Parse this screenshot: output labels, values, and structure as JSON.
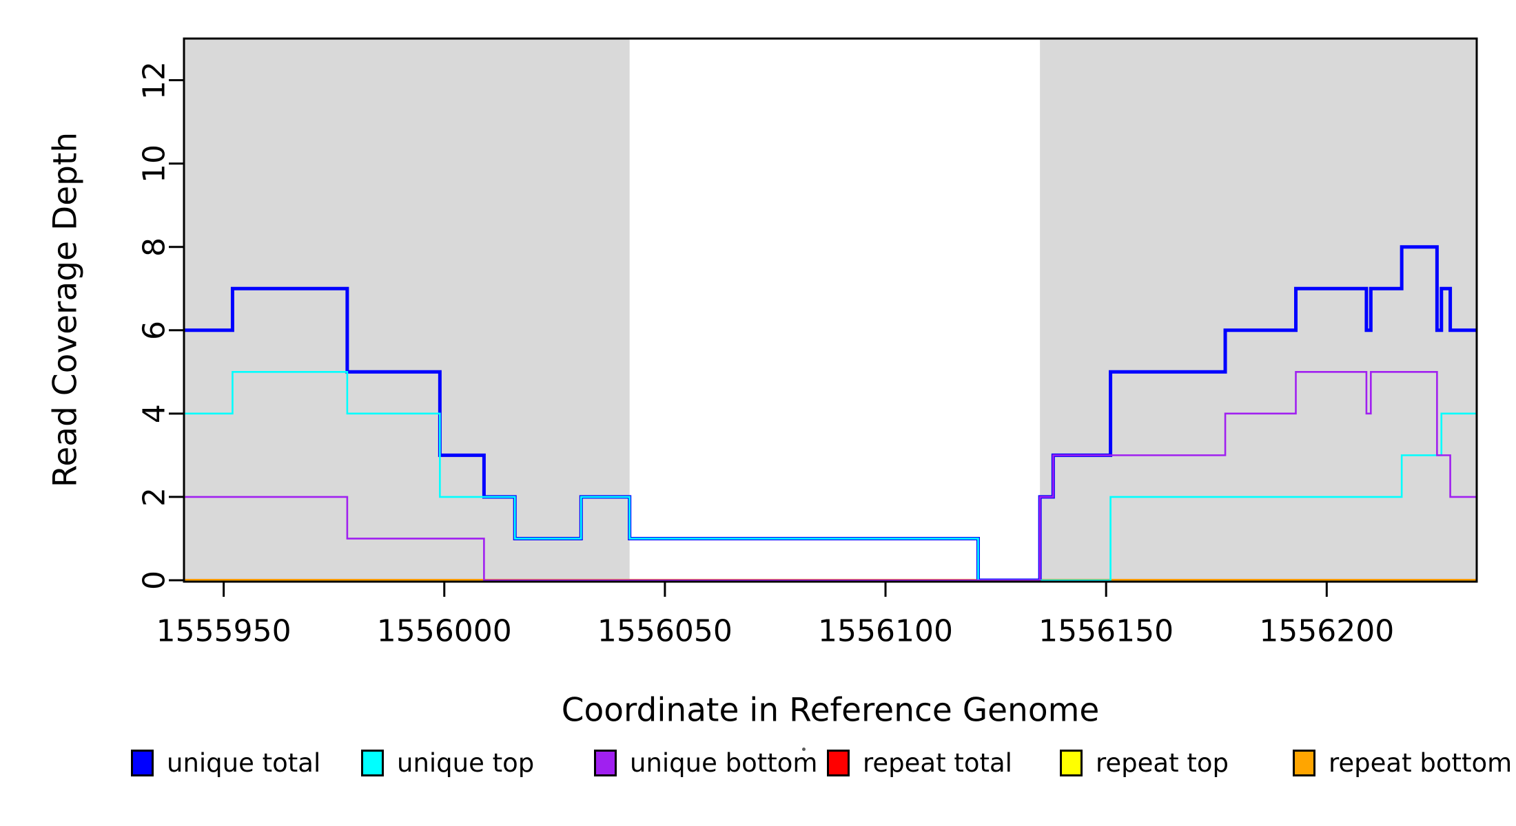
{
  "chart_data": {
    "type": "line",
    "subtype": "step",
    "title": "",
    "xlabel": "Coordinate in Reference Genome",
    "ylabel": "Read Coverage Depth",
    "xlim": [
      1555941,
      1556234
    ],
    "ylim": [
      0,
      13
    ],
    "x_ticks": [
      1555950,
      1556000,
      1556050,
      1556100,
      1556150,
      1556200
    ],
    "y_ticks": [
      0,
      2,
      4,
      6,
      8,
      10,
      12
    ],
    "grid": false,
    "legend_position": "bottom",
    "background_color": "#FFFFFF",
    "shaded_region_color": "#D9D9D9",
    "shaded_regions": [
      {
        "x_start": 1555941,
        "x_end": 1556042
      },
      {
        "x_start": 1556135,
        "x_end": 1556234
      }
    ],
    "series": [
      {
        "name": "repeat total",
        "color": "#FF0000",
        "width": 4,
        "x_end": 1556234,
        "steps": [
          [
            1555941,
            0
          ]
        ]
      },
      {
        "name": "repeat top",
        "color": "#FFFF00",
        "width": 3.4,
        "x_end": 1556234,
        "steps": [
          [
            1555941,
            0
          ]
        ]
      },
      {
        "name": "repeat bottom",
        "color": "#FFA500",
        "width": 3,
        "x_end": 1556234,
        "steps": [
          [
            1555941,
            0
          ]
        ]
      },
      {
        "name": "unique total",
        "color": "#0000FF",
        "width": 5,
        "x_end": 1556234,
        "steps": [
          [
            1555941,
            6
          ],
          [
            1555952,
            7
          ],
          [
            1555978,
            5
          ],
          [
            1555999,
            3
          ],
          [
            1556009,
            2
          ],
          [
            1556016,
            1
          ],
          [
            1556031,
            2
          ],
          [
            1556042,
            1
          ],
          [
            1556121,
            0
          ],
          [
            1556135,
            2
          ],
          [
            1556138,
            3
          ],
          [
            1556151,
            5
          ],
          [
            1556177,
            6
          ],
          [
            1556193,
            7
          ],
          [
            1556209,
            6
          ],
          [
            1556210,
            7
          ],
          [
            1556217,
            8
          ],
          [
            1556225,
            6
          ],
          [
            1556226,
            7
          ],
          [
            1556228,
            6
          ]
        ]
      },
      {
        "name": "unique top",
        "color": "#00FFFF",
        "width": 2.6,
        "x_end": 1556234,
        "steps": [
          [
            1555941,
            4
          ],
          [
            1555952,
            5
          ],
          [
            1555978,
            4
          ],
          [
            1555999,
            2
          ],
          [
            1556016,
            1
          ],
          [
            1556031,
            2
          ],
          [
            1556042,
            1
          ],
          [
            1556121,
            0
          ],
          [
            1556151,
            2
          ],
          [
            1556217,
            3
          ],
          [
            1556226,
            4
          ]
        ]
      },
      {
        "name": "unique bottom",
        "color": "#A020F0",
        "width": 2.6,
        "x_end": 1556234,
        "steps": [
          [
            1555941,
            2
          ],
          [
            1555978,
            1
          ],
          [
            1556009,
            0
          ],
          [
            1556135,
            2
          ],
          [
            1556138,
            3
          ],
          [
            1556177,
            4
          ],
          [
            1556193,
            5
          ],
          [
            1556209,
            4
          ],
          [
            1556210,
            5
          ],
          [
            1556225,
            3
          ],
          [
            1556228,
            2
          ]
        ]
      }
    ],
    "legend": [
      {
        "label": "unique total",
        "color": "#0000FF"
      },
      {
        "label": "unique top",
        "color": "#00FFFF"
      },
      {
        "label": "unique bottom",
        "color": "#A020F0"
      },
      {
        "label": "repeat total",
        "color": "#FF0000"
      },
      {
        "label": "repeat top",
        "color": "#FFFF00"
      },
      {
        "label": "repeat bottom",
        "color": "#FFA500"
      }
    ]
  }
}
